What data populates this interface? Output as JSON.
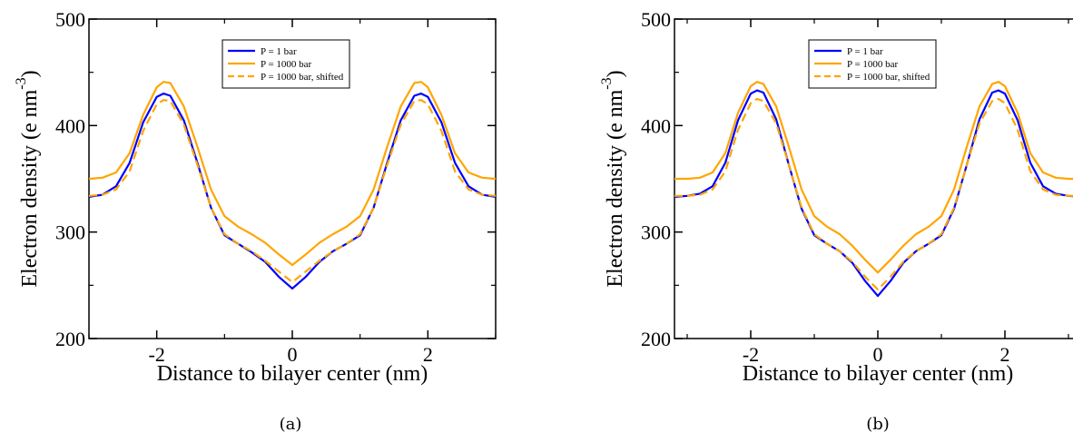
{
  "chart_data": [
    {
      "type": "line",
      "caption": "(a)",
      "xlabel": "Distance to bilayer center (nm)",
      "ylabel": "Electron density (e nm",
      "ylabel_sup": "-3",
      "ylabel_close": ")",
      "xlim": [
        -3.0,
        3.0
      ],
      "ylim": [
        200,
        500
      ],
      "xticks": [
        -2,
        0,
        2
      ],
      "xtick_labels": [
        "-2",
        "0",
        "2"
      ],
      "yticks": [
        200,
        300,
        400,
        500
      ],
      "ytick_labels": [
        "200",
        "300",
        "400",
        "500"
      ],
      "legend_position": "top-center",
      "x": [
        -3.0,
        -2.8,
        -2.6,
        -2.4,
        -2.2,
        -2.0,
        -1.9,
        -1.8,
        -1.6,
        -1.4,
        -1.2,
        -1.0,
        -0.8,
        -0.6,
        -0.4,
        -0.2,
        0.0,
        0.2,
        0.4,
        0.6,
        0.8,
        1.0,
        1.2,
        1.4,
        1.6,
        1.8,
        1.9,
        2.0,
        2.2,
        2.4,
        2.6,
        2.8,
        3.0
      ],
      "series": [
        {
          "name": "P = 1 bar",
          "color": "#0000ff",
          "dash": "solid",
          "values": [
            333,
            335,
            343,
            365,
            403,
            427,
            430,
            428,
            405,
            365,
            323,
            297,
            289,
            281,
            272,
            258,
            247,
            258,
            272,
            282,
            289,
            297,
            323,
            365,
            405,
            428,
            430,
            427,
            403,
            365,
            343,
            335,
            333
          ]
        },
        {
          "name": "P = 1000 bar",
          "color": "#ffa500",
          "dash": "solid",
          "values": [
            350,
            351,
            356,
            374,
            410,
            436,
            441,
            440,
            418,
            380,
            340,
            315,
            305,
            298,
            290,
            279,
            269,
            279,
            290,
            298,
            305,
            315,
            340,
            380,
            418,
            440,
            441,
            436,
            410,
            374,
            356,
            351,
            350
          ]
        },
        {
          "name": "P = 1000 bar, shifted",
          "color": "#ffa500",
          "dash": "dashed",
          "values": [
            334,
            335,
            340,
            357,
            395,
            420,
            424,
            423,
            401,
            363,
            323,
            298,
            289,
            282,
            273,
            263,
            253,
            263,
            273,
            282,
            289,
            298,
            323,
            363,
            401,
            423,
            424,
            420,
            395,
            357,
            340,
            335,
            334
          ]
        }
      ]
    },
    {
      "type": "line",
      "caption": "(b)",
      "xlabel": "Distance to bilayer center (nm)",
      "ylabel": "Electron density (e nm",
      "ylabel_sup": "-3",
      "ylabel_close": ")",
      "xlim": [
        -3.2,
        3.2
      ],
      "ylim": [
        200,
        500
      ],
      "xticks": [
        -2,
        0,
        2
      ],
      "xtick_labels": [
        "-2",
        "0",
        "2"
      ],
      "yticks": [
        200,
        300,
        400,
        500
      ],
      "ytick_labels": [
        "200",
        "300",
        "400",
        "500"
      ],
      "legend_position": "top-center",
      "x": [
        -3.2,
        -3.0,
        -2.8,
        -2.6,
        -2.4,
        -2.2,
        -2.0,
        -1.9,
        -1.8,
        -1.6,
        -1.4,
        -1.2,
        -1.0,
        -0.8,
        -0.6,
        -0.4,
        -0.2,
        0.0,
        0.2,
        0.4,
        0.6,
        0.8,
        1.0,
        1.2,
        1.4,
        1.6,
        1.8,
        1.9,
        2.0,
        2.2,
        2.4,
        2.6,
        2.8,
        3.0,
        3.2
      ],
      "series": [
        {
          "name": "P = 1 bar",
          "color": "#0000ff",
          "dash": "solid",
          "values": [
            333,
            334,
            336,
            343,
            365,
            405,
            430,
            433,
            431,
            406,
            363,
            322,
            297,
            289,
            282,
            271,
            254,
            240,
            254,
            271,
            282,
            289,
            297,
            322,
            363,
            406,
            431,
            433,
            430,
            405,
            365,
            343,
            336,
            334,
            333
          ]
        },
        {
          "name": "P = 1000 bar",
          "color": "#ffa500",
          "dash": "solid",
          "values": [
            350,
            350,
            351,
            356,
            374,
            412,
            437,
            441,
            439,
            418,
            380,
            340,
            315,
            305,
            298,
            287,
            274,
            262,
            274,
            287,
            298,
            305,
            315,
            340,
            380,
            418,
            439,
            441,
            437,
            412,
            374,
            356,
            351,
            350,
            350
          ]
        },
        {
          "name": "P = 1000 bar, shifted",
          "color": "#ffa500",
          "dash": "dashed",
          "values": [
            334,
            334,
            335,
            340,
            357,
            396,
            421,
            425,
            423,
            402,
            363,
            323,
            298,
            289,
            282,
            272,
            258,
            246,
            258,
            272,
            282,
            289,
            298,
            323,
            363,
            402,
            423,
            425,
            421,
            396,
            357,
            340,
            335,
            334,
            334
          ]
        }
      ]
    }
  ]
}
